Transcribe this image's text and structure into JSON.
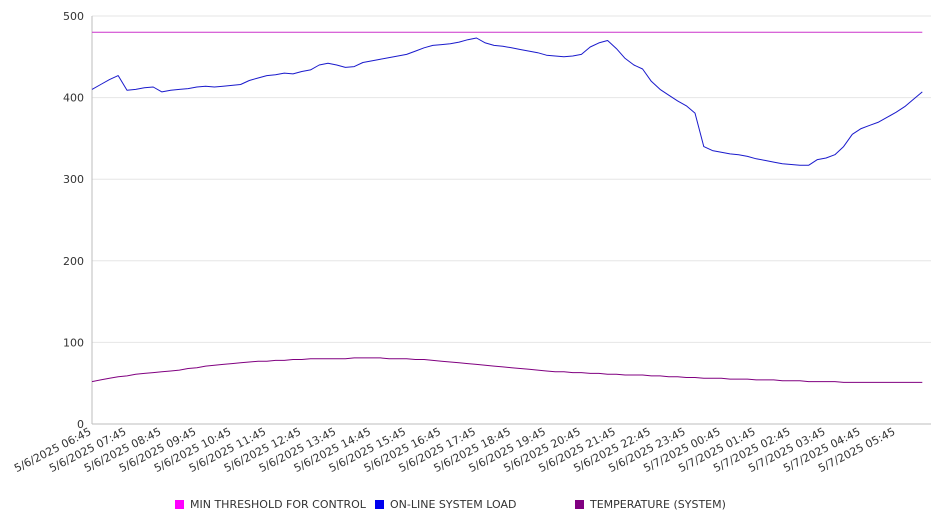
{
  "chart_data": {
    "type": "line",
    "ylim": [
      0,
      500
    ],
    "yticks": [
      0,
      100,
      200,
      300,
      400,
      500
    ],
    "grid": true,
    "legend_position": "bottom",
    "categories": [
      "5/6/2025 06:45",
      "5/6/2025 07:45",
      "5/6/2025 08:45",
      "5/6/2025 09:45",
      "5/6/2025 10:45",
      "5/6/2025 11:45",
      "5/6/2025 12:45",
      "5/6/2025 13:45",
      "5/6/2025 14:45",
      "5/6/2025 15:45",
      "5/6/2025 16:45",
      "5/6/2025 17:45",
      "5/6/2025 18:45",
      "5/6/2025 19:45",
      "5/6/2025 20:45",
      "5/6/2025 21:45",
      "5/6/2025 22:45",
      "5/6/2025 23:45",
      "5/7/2025 00:45",
      "5/7/2025 01:45",
      "5/7/2025 02:45",
      "5/7/2025 03:45",
      "5/7/2025 04:45",
      "5/7/2025 05:45"
    ],
    "x": [
      0,
      0.25,
      0.5,
      0.75,
      1,
      1.25,
      1.5,
      1.75,
      2,
      2.25,
      2.5,
      2.75,
      3,
      3.25,
      3.5,
      3.75,
      4,
      4.25,
      4.5,
      4.75,
      5,
      5.25,
      5.5,
      5.75,
      6,
      6.25,
      6.5,
      6.75,
      7,
      7.25,
      7.5,
      7.75,
      8,
      8.25,
      8.5,
      8.75,
      9,
      9.25,
      9.5,
      9.75,
      10,
      10.25,
      10.5,
      10.75,
      11,
      11.25,
      11.5,
      11.75,
      12,
      12.25,
      12.5,
      12.75,
      13,
      13.25,
      13.5,
      13.75,
      14,
      14.25,
      14.5,
      14.75,
      15,
      15.25,
      15.5,
      15.75,
      16,
      16.25,
      16.5,
      16.75,
      17,
      17.25,
      17.5,
      17.75,
      18,
      18.25,
      18.5,
      18.75,
      19,
      19.25,
      19.5,
      19.75,
      20,
      20.25,
      20.5,
      20.75,
      21,
      21.25,
      21.5,
      21.75,
      22,
      22.25,
      22.5,
      22.75,
      23,
      23.25,
      23.5,
      23.75
    ],
    "series": [
      {
        "name": "MIN THRESHOLD FOR CONTROL",
        "color": "#cc33cc",
        "values": [
          480,
          480,
          480,
          480,
          480,
          480,
          480,
          480,
          480,
          480,
          480,
          480,
          480,
          480,
          480,
          480,
          480,
          480,
          480,
          480,
          480,
          480,
          480,
          480,
          480,
          480,
          480,
          480,
          480,
          480,
          480,
          480,
          480,
          480,
          480,
          480,
          480,
          480,
          480,
          480,
          480,
          480,
          480,
          480,
          480,
          480,
          480,
          480,
          480,
          480,
          480,
          480,
          480,
          480,
          480,
          480,
          480,
          480,
          480,
          480,
          480,
          480,
          480,
          480,
          480,
          480,
          480,
          480,
          480,
          480,
          480,
          480,
          480,
          480,
          480,
          480,
          480,
          480,
          480,
          480,
          480,
          480,
          480,
          480,
          480,
          480,
          480,
          480,
          480,
          480,
          480,
          480,
          480,
          480,
          480,
          480
        ]
      },
      {
        "name": "ON-LINE SYSTEM LOAD",
        "color": "#1a1acc",
        "values": [
          410,
          416,
          422,
          427,
          409,
          410,
          412,
          413,
          407,
          409,
          410,
          411,
          413,
          414,
          413,
          414,
          415,
          416,
          421,
          424,
          427,
          428,
          430,
          429,
          432,
          434,
          440,
          442,
          440,
          437,
          438,
          443,
          445,
          447,
          449,
          451,
          453,
          457,
          461,
          464,
          465,
          466,
          468,
          471,
          473,
          467,
          464,
          463,
          461,
          459,
          457,
          455,
          452,
          451,
          450,
          451,
          453,
          462,
          467,
          470,
          460,
          448,
          440,
          435,
          420,
          410,
          403,
          396,
          390,
          381,
          340,
          335,
          333,
          331,
          330,
          328,
          325,
          323,
          321,
          319,
          318,
          317,
          317,
          324,
          326,
          330,
          340,
          355,
          362,
          366,
          370,
          376,
          382,
          389,
          398,
          407
        ]
      },
      {
        "name": "TEMPERATURE (SYSTEM)",
        "color": "#800080",
        "values": [
          52,
          54,
          56,
          58,
          59,
          61,
          62,
          63,
          64,
          65,
          66,
          68,
          69,
          71,
          72,
          73,
          74,
          75,
          76,
          77,
          77,
          78,
          78,
          79,
          79,
          80,
          80,
          80,
          80,
          80,
          81,
          81,
          81,
          81,
          80,
          80,
          80,
          79,
          79,
          78,
          77,
          76,
          75,
          74,
          73,
          72,
          71,
          70,
          69,
          68,
          67,
          66,
          65,
          64,
          64,
          63,
          63,
          62,
          62,
          61,
          61,
          60,
          60,
          60,
          59,
          59,
          58,
          58,
          57,
          57,
          56,
          56,
          56,
          55,
          55,
          55,
          54,
          54,
          54,
          53,
          53,
          53,
          52,
          52,
          52,
          52,
          51,
          51,
          51,
          51,
          51,
          51,
          51,
          51,
          51,
          51
        ]
      }
    ]
  }
}
